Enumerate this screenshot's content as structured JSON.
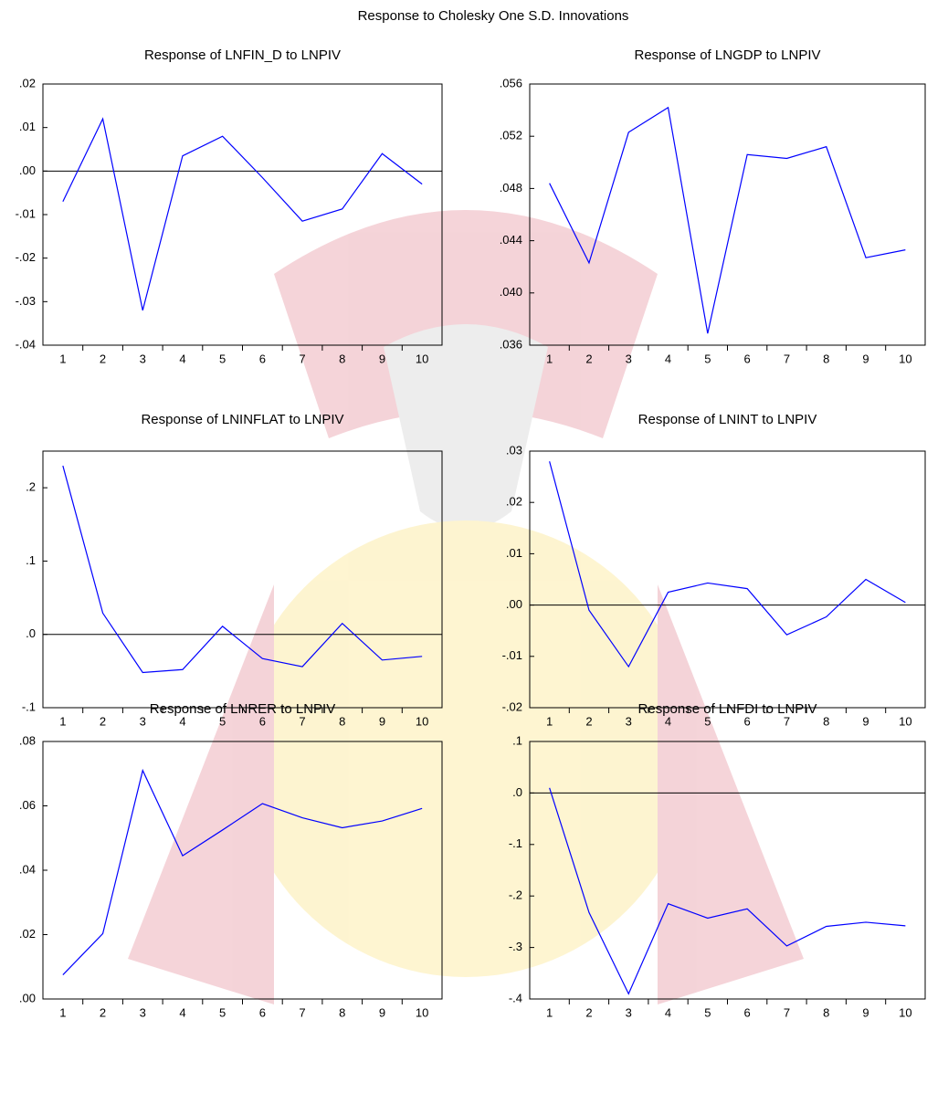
{
  "title": "Response to Cholesky One S.D. Innovations",
  "chart_data": [
    {
      "type": "line",
      "title": "Response of LNFIN_D to LNPIV",
      "categories": [
        "1",
        "2",
        "3",
        "4",
        "5",
        "6",
        "7",
        "8",
        "9",
        "10"
      ],
      "values": [
        -0.007,
        0.012,
        -0.032,
        0.0035,
        0.008,
        -0.0015,
        -0.0115,
        -0.0087,
        0.004,
        -0.003
      ],
      "color": "#0000ff",
      "ylim": [
        -0.04,
        0.02
      ],
      "yticks": [
        {
          "value": 0.02,
          "label": ".02"
        },
        {
          "value": 0.01,
          "label": ".01"
        },
        {
          "value": 0,
          "label": ".00"
        },
        {
          "value": -0.01,
          "label": "-.01"
        },
        {
          "value": -0.02,
          "label": "-.02"
        },
        {
          "value": -0.03,
          "label": "-.03"
        },
        {
          "value": -0.04,
          "label": "-.04"
        }
      ]
    },
    {
      "type": "line",
      "title": "Response of LNGDP to LNPIV",
      "categories": [
        "1",
        "2",
        "3",
        "4",
        "5",
        "6",
        "7",
        "8",
        "9",
        "10"
      ],
      "values": [
        0.0484,
        0.0423,
        0.0523,
        0.0542,
        0.0369,
        0.0506,
        0.0503,
        0.0512,
        0.0427,
        0.0433
      ],
      "color": "#0000ff",
      "ylim": [
        0.036,
        0.056
      ],
      "yticks": [
        {
          "value": 0.056,
          "label": ".056"
        },
        {
          "value": 0.052,
          "label": ".052"
        },
        {
          "value": 0.048,
          "label": ".048"
        },
        {
          "value": 0.044,
          "label": ".044"
        },
        {
          "value": 0.04,
          "label": ".040"
        },
        {
          "value": 0.036,
          "label": ".036"
        }
      ]
    },
    {
      "type": "line",
      "title": "Response of LNINFLAT to LNPIV",
      "categories": [
        "1",
        "2",
        "3",
        "4",
        "5",
        "6",
        "7",
        "8",
        "9",
        "10"
      ],
      "values": [
        0.23,
        0.029,
        -0.052,
        -0.048,
        0.011,
        -0.033,
        -0.044,
        0.015,
        -0.035,
        -0.03
      ],
      "color": "#0000ff",
      "ylim": [
        -0.1,
        0.25
      ],
      "yticks": [
        {
          "value": 0.2,
          "label": ".2"
        },
        {
          "value": 0.1,
          "label": ".1"
        },
        {
          "value": 0,
          "label": ".0"
        },
        {
          "value": -0.1,
          "label": "-.1"
        }
      ]
    },
    {
      "type": "line",
      "title": "Response of LNINT to LNPIV",
      "categories": [
        "1",
        "2",
        "3",
        "4",
        "5",
        "6",
        "7",
        "8",
        "9",
        "10"
      ],
      "values": [
        0.028,
        -0.001,
        -0.012,
        0.0025,
        0.0043,
        0.0032,
        -0.0058,
        -0.0023,
        0.005,
        0.0005
      ],
      "color": "#0000ff",
      "ylim": [
        -0.02,
        0.03
      ],
      "yticks": [
        {
          "value": 0.03,
          "label": ".03"
        },
        {
          "value": 0.02,
          "label": ".02"
        },
        {
          "value": 0.01,
          "label": ".01"
        },
        {
          "value": 0,
          "label": ".00"
        },
        {
          "value": -0.01,
          "label": "-.01"
        },
        {
          "value": -0.02,
          "label": "-.02"
        }
      ]
    },
    {
      "type": "line",
      "title": "Response of LNRER to LNPIV",
      "categories": [
        "1",
        "2",
        "3",
        "4",
        "5",
        "6",
        "7",
        "8",
        "9",
        "10"
      ],
      "values": [
        0.0075,
        0.0203,
        0.071,
        0.0445,
        0.0525,
        0.0607,
        0.0563,
        0.0532,
        0.0553,
        0.0592
      ],
      "color": "#0000ff",
      "ylim": [
        0,
        0.08
      ],
      "yticks": [
        {
          "value": 0.08,
          "label": ".08"
        },
        {
          "value": 0.06,
          "label": ".06"
        },
        {
          "value": 0.04,
          "label": ".04"
        },
        {
          "value": 0.02,
          "label": ".02"
        },
        {
          "value": 0,
          "label": ".00"
        }
      ]
    },
    {
      "type": "line",
      "title": "Response of LNFDI to LNPIV",
      "categories": [
        "1",
        "2",
        "3",
        "4",
        "5",
        "6",
        "7",
        "8",
        "9",
        "10"
      ],
      "values": [
        0.01,
        -0.232,
        -0.39,
        -0.215,
        -0.243,
        -0.225,
        -0.297,
        -0.259,
        -0.251,
        -0.258
      ],
      "color": "#0000ff",
      "ylim": [
        -0.4,
        0.1
      ],
      "yticks": [
        {
          "value": 0.1,
          "label": ".1"
        },
        {
          "value": 0,
          "label": ".0"
        },
        {
          "value": -0.1,
          "label": "-.1"
        },
        {
          "value": -0.2,
          "label": "-.2"
        },
        {
          "value": -0.3,
          "label": "-.3"
        },
        {
          "value": -0.4,
          "label": "-.4"
        }
      ]
    }
  ]
}
